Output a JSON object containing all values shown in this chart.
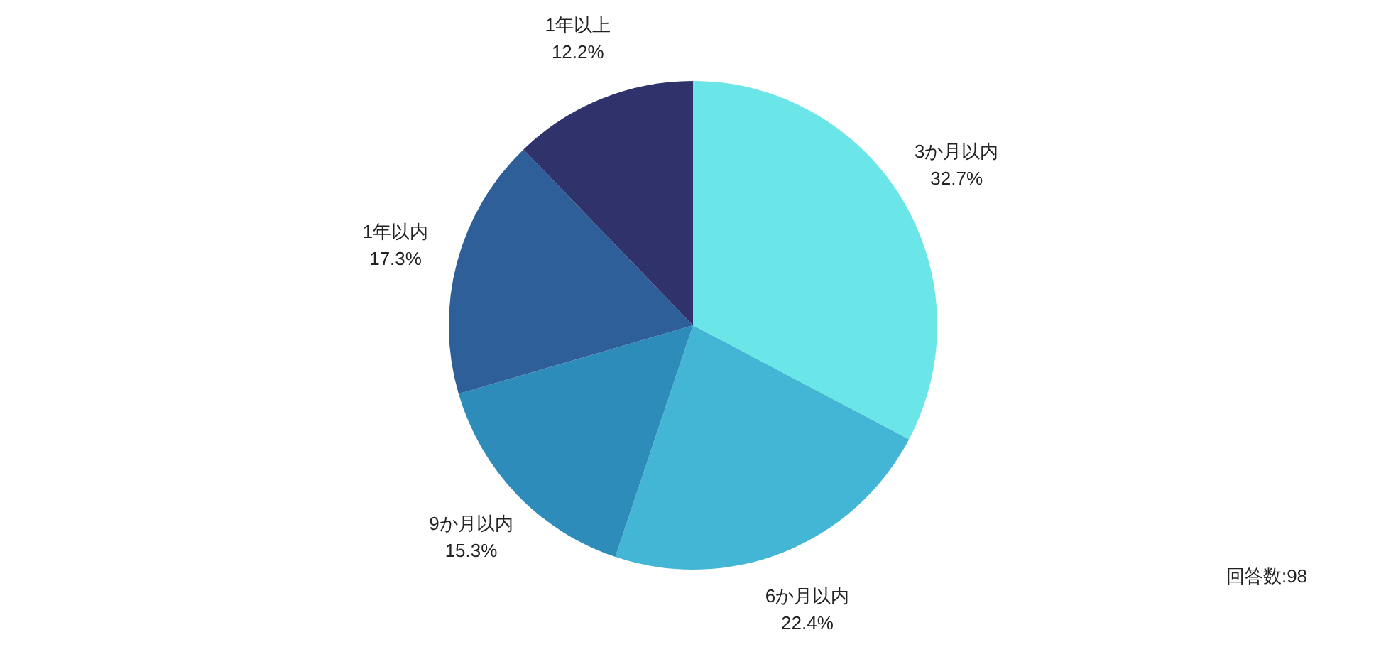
{
  "chart_data": {
    "type": "pie",
    "categories": [
      "3か月以内",
      "6か月以内",
      "9か月以内",
      "1年以内",
      "1年以上"
    ],
    "values": [
      32.7,
      22.4,
      15.3,
      17.3,
      12.2
    ],
    "value_labels": [
      "32.7%",
      "22.4%",
      "15.3%",
      "17.3%",
      "12.2%"
    ],
    "colors": [
      "#6ae5e8",
      "#43b6d6",
      "#2e8cbb",
      "#2e5f99",
      "#30336b"
    ],
    "annotations": [
      "回答数:98"
    ]
  }
}
